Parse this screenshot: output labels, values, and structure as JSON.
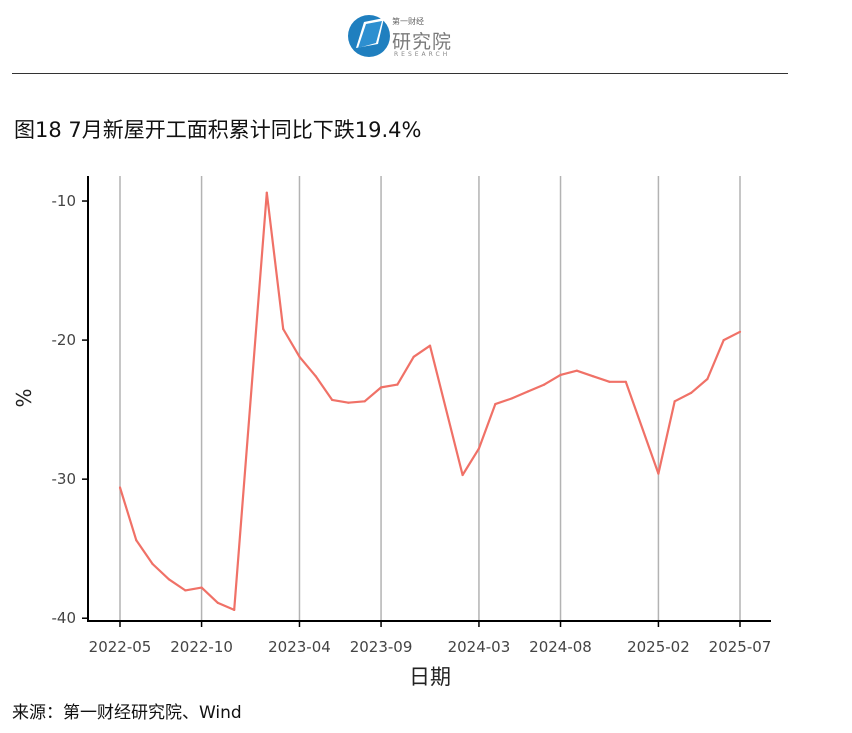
{
  "header": {
    "logo_small": "第一财经",
    "logo_main": "研究院",
    "logo_sub": "RESEARCH"
  },
  "figure": {
    "title": "图18 7月新屋开工面积累计同比下跌19.4%",
    "source": "来源：第一财经研究院、Wind"
  },
  "colors": {
    "line": "#f07167",
    "grid": "#b3b3b3",
    "axis": "#000000"
  },
  "chart_data": {
    "type": "line",
    "xlabel": "日期",
    "ylabel": "%",
    "x": [
      "2022-05",
      "2022-06",
      "2022-07",
      "2022-08",
      "2022-09",
      "2022-10",
      "2022-11",
      "2022-12",
      "2023-02",
      "2023-03",
      "2023-04",
      "2023-05",
      "2023-06",
      "2023-07",
      "2023-08",
      "2023-09",
      "2023-10",
      "2023-11",
      "2023-12",
      "2024-02",
      "2024-03",
      "2024-04",
      "2024-05",
      "2024-06",
      "2024-07",
      "2024-08",
      "2024-09",
      "2024-10",
      "2024-11",
      "2024-12",
      "2025-02",
      "2025-03",
      "2025-04",
      "2025-05",
      "2025-06",
      "2025-07"
    ],
    "series": [
      {
        "values": [
          -30.6,
          -34.4,
          -36.1,
          -37.2,
          -38.0,
          -37.8,
          -38.9,
          -39.4,
          -9.4,
          -19.2,
          -21.2,
          -22.6,
          -24.3,
          -24.5,
          -24.4,
          -23.4,
          -23.2,
          -21.2,
          -20.4,
          -29.7,
          -27.8,
          -24.6,
          -24.2,
          -23.7,
          -23.2,
          -22.5,
          -22.2,
          -22.6,
          -23.0,
          -23.0,
          -29.6,
          -24.4,
          -23.8,
          -22.8,
          -20.0,
          -19.4
        ]
      }
    ],
    "x_ticks": [
      "2022-05",
      "2022-10",
      "2023-04",
      "2023-09",
      "2024-03",
      "2024-08",
      "2025-02",
      "2025-07"
    ],
    "y_ticks": [
      -10,
      -20,
      -30,
      -40
    ],
    "ylim": [
      -40.2,
      -8.2
    ],
    "grid": "vertical",
    "legend": "none"
  }
}
